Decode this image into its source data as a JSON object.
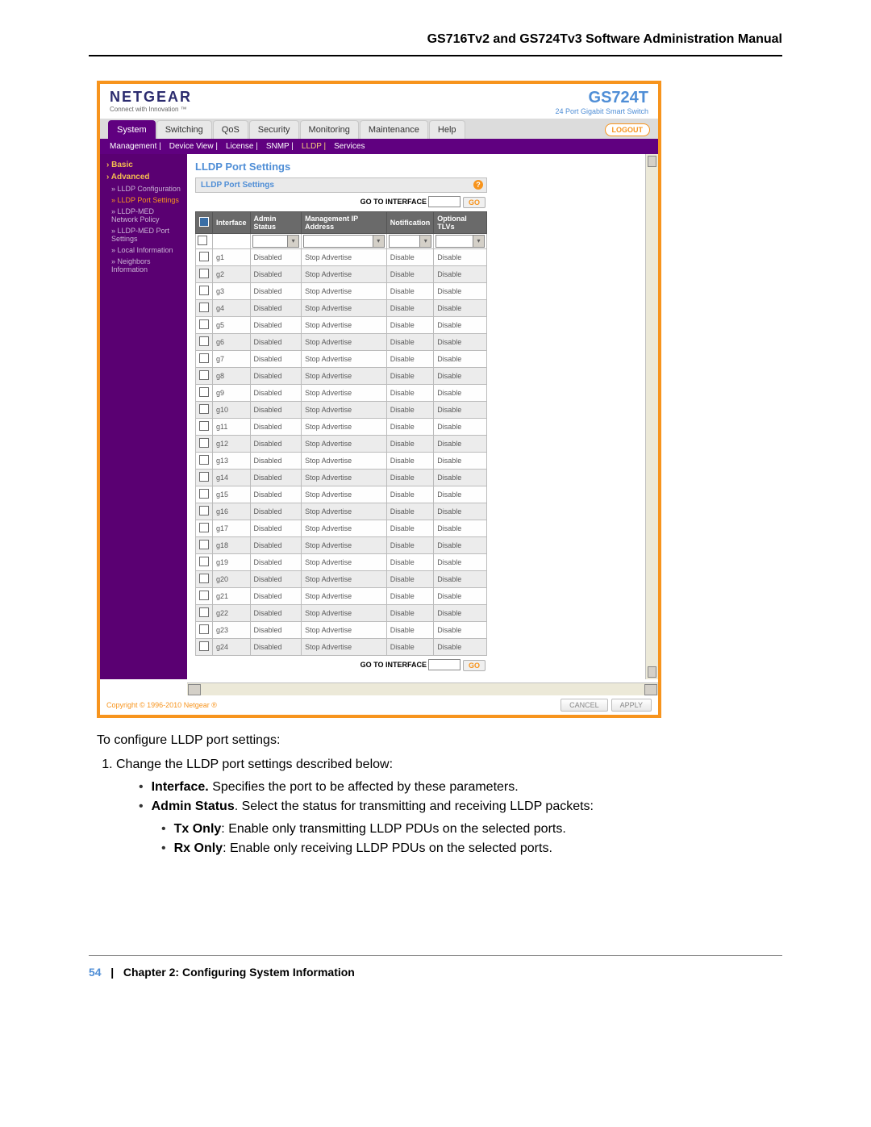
{
  "doc": {
    "header": "GS716Tv2 and GS724Tv3 Software Administration Manual",
    "footer_page": "54",
    "footer_chapter": "Chapter 2:  Configuring System Information"
  },
  "brand": {
    "name": "NETGEAR",
    "tagline": "Connect with Innovation ™",
    "model": "GS724T",
    "model_desc": "24 Port Gigabit Smart Switch"
  },
  "tabs": [
    "System",
    "Switching",
    "QoS",
    "Security",
    "Monitoring",
    "Maintenance",
    "Help"
  ],
  "active_tab": "System",
  "logout": "LOGOUT",
  "subtabs": [
    "Management",
    "Device View",
    "License",
    "SNMP",
    "LLDP",
    "Services"
  ],
  "active_subtab": "LLDP",
  "sidebar": {
    "sections": [
      {
        "head": "Basic",
        "items": []
      },
      {
        "head": "Advanced",
        "items": [
          "» LLDP Configuration",
          "» LLDP Port Settings",
          "» LLDP-MED Network Policy",
          "» LLDP-MED Port Settings",
          "» Local Information",
          "» Neighbors Information"
        ],
        "selected_index": 1
      }
    ]
  },
  "panel": {
    "title": "LLDP Port Settings",
    "group_title": "LLDP Port Settings",
    "goto_label": "GO TO INTERFACE",
    "go_btn": "GO",
    "columns": [
      "",
      "Interface",
      "Admin Status",
      "Management IP Address",
      "Notification",
      "Optional TLVs"
    ],
    "rows": [
      [
        "g1",
        "Disabled",
        "Stop Advertise",
        "Disable",
        "Disable"
      ],
      [
        "g2",
        "Disabled",
        "Stop Advertise",
        "Disable",
        "Disable"
      ],
      [
        "g3",
        "Disabled",
        "Stop Advertise",
        "Disable",
        "Disable"
      ],
      [
        "g4",
        "Disabled",
        "Stop Advertise",
        "Disable",
        "Disable"
      ],
      [
        "g5",
        "Disabled",
        "Stop Advertise",
        "Disable",
        "Disable"
      ],
      [
        "g6",
        "Disabled",
        "Stop Advertise",
        "Disable",
        "Disable"
      ],
      [
        "g7",
        "Disabled",
        "Stop Advertise",
        "Disable",
        "Disable"
      ],
      [
        "g8",
        "Disabled",
        "Stop Advertise",
        "Disable",
        "Disable"
      ],
      [
        "g9",
        "Disabled",
        "Stop Advertise",
        "Disable",
        "Disable"
      ],
      [
        "g10",
        "Disabled",
        "Stop Advertise",
        "Disable",
        "Disable"
      ],
      [
        "g11",
        "Disabled",
        "Stop Advertise",
        "Disable",
        "Disable"
      ],
      [
        "g12",
        "Disabled",
        "Stop Advertise",
        "Disable",
        "Disable"
      ],
      [
        "g13",
        "Disabled",
        "Stop Advertise",
        "Disable",
        "Disable"
      ],
      [
        "g14",
        "Disabled",
        "Stop Advertise",
        "Disable",
        "Disable"
      ],
      [
        "g15",
        "Disabled",
        "Stop Advertise",
        "Disable",
        "Disable"
      ],
      [
        "g16",
        "Disabled",
        "Stop Advertise",
        "Disable",
        "Disable"
      ],
      [
        "g17",
        "Disabled",
        "Stop Advertise",
        "Disable",
        "Disable"
      ],
      [
        "g18",
        "Disabled",
        "Stop Advertise",
        "Disable",
        "Disable"
      ],
      [
        "g19",
        "Disabled",
        "Stop Advertise",
        "Disable",
        "Disable"
      ],
      [
        "g20",
        "Disabled",
        "Stop Advertise",
        "Disable",
        "Disable"
      ],
      [
        "g21",
        "Disabled",
        "Stop Advertise",
        "Disable",
        "Disable"
      ],
      [
        "g22",
        "Disabled",
        "Stop Advertise",
        "Disable",
        "Disable"
      ],
      [
        "g23",
        "Disabled",
        "Stop Advertise",
        "Disable",
        "Disable"
      ],
      [
        "g24",
        "Disabled",
        "Stop Advertise",
        "Disable",
        "Disable"
      ]
    ]
  },
  "buttons": {
    "cancel": "CANCEL",
    "apply": "APPLY"
  },
  "copyright": "Copyright © 1996-2010 Netgear ®",
  "instructions": {
    "lead": "To configure LLDP port settings:",
    "step1": "Change the LLDP port settings described below:",
    "b_interface_label": "Interface.",
    "b_interface_text": " Specifies the port to be affected by these parameters.",
    "b_admin_label": "Admin Status",
    "b_admin_text": ". Select the status for transmitting and receiving LLDP packets:",
    "sub_tx_label": "Tx Only",
    "sub_tx_text": ": Enable only transmitting LLDP PDUs on the selected ports.",
    "sub_rx_label": "Rx Only",
    "sub_rx_text": ": Enable only receiving LLDP PDUs on the selected ports."
  }
}
